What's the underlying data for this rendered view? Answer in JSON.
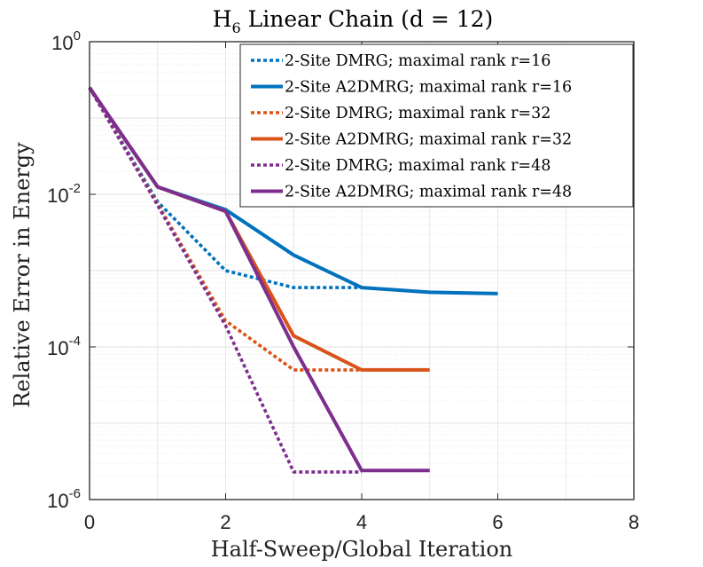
{
  "chart_data": {
    "type": "line",
    "title": "H",
    "title_sub": "6",
    "title_rest": " Linear Chain (d = 12)",
    "xlabel": "Half-Sweep/Global Iteration",
    "ylabel": "Relative Error in Energy",
    "xlim": [
      0,
      8
    ],
    "ylim": [
      1e-06,
      1
    ],
    "yscale": "log",
    "grid": true,
    "legend_position": "top-right",
    "x_ticks": [
      {
        "value": 0,
        "label": "0"
      },
      {
        "value": 2,
        "label": "2"
      },
      {
        "value": 4,
        "label": "4"
      },
      {
        "value": 6,
        "label": "6"
      },
      {
        "value": 8,
        "label": "8"
      }
    ],
    "y_ticks": [
      {
        "value": 1,
        "base": "10",
        "exp": "0"
      },
      {
        "value": 0.01,
        "base": "10",
        "exp": "-2"
      },
      {
        "value": 0.0001,
        "base": "10",
        "exp": "-4"
      },
      {
        "value": 1e-06,
        "base": "10",
        "exp": "-6"
      }
    ],
    "series": [
      {
        "name": "2-Site DMRG; maximal rank r=16",
        "color": "#0072BD",
        "style": "dotted",
        "x": [
          0,
          1,
          2,
          3,
          4
        ],
        "y": [
          0.25,
          0.008,
          0.001,
          0.0006,
          0.0006
        ]
      },
      {
        "name": "2-Site A2DMRG; maximal rank r=16",
        "color": "#0072BD",
        "style": "solid",
        "x": [
          0,
          1,
          2,
          3,
          4,
          5,
          6
        ],
        "y": [
          0.25,
          0.0125,
          0.0063,
          0.0016,
          0.0006,
          0.00052,
          0.0005
        ]
      },
      {
        "name": "2-Site DMRG; maximal rank r=32",
        "color": "#D95319",
        "style": "dotted",
        "x": [
          0,
          1,
          2,
          3,
          4
        ],
        "y": [
          0.25,
          0.0075,
          0.00022,
          5e-05,
          5e-05
        ]
      },
      {
        "name": "2-Site A2DMRG; maximal rank r=32",
        "color": "#D95319",
        "style": "solid",
        "x": [
          0,
          1,
          2,
          3,
          4,
          5
        ],
        "y": [
          0.25,
          0.0125,
          0.006,
          0.00014,
          5e-05,
          5e-05
        ]
      },
      {
        "name": "2-Site DMRG; maximal rank r=48",
        "color": "#7E2F8E",
        "style": "dotted",
        "x": [
          0,
          1,
          2,
          3,
          4
        ],
        "y": [
          0.25,
          0.0072,
          0.00019,
          2.3e-06,
          2.3e-06
        ]
      },
      {
        "name": "2-Site A2DMRG; maximal rank r=48",
        "color": "#7E2F8E",
        "style": "solid",
        "x": [
          0,
          1,
          2,
          3,
          4,
          5
        ],
        "y": [
          0.25,
          0.0125,
          0.006,
          0.0001,
          2.4e-06,
          2.4e-06
        ]
      }
    ]
  }
}
